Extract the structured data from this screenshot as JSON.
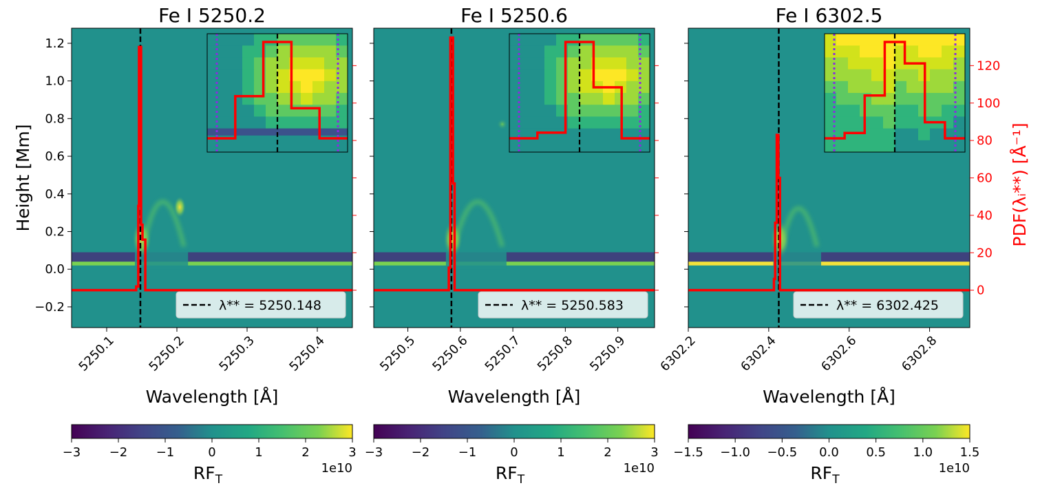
{
  "chart_data": [
    {
      "type": "heatmap",
      "title": "Fe I 5250.2",
      "xlabel": "Wavelength [Å]",
      "ylabel": "Height [Mm]",
      "xlim": [
        5250.05,
        5250.45
      ],
      "ylim": [
        -0.31,
        1.28
      ],
      "xticks": [
        5250.1,
        5250.2,
        5250.3,
        5250.4
      ],
      "xtick_labels": [
        "5250.1",
        "5250.2",
        "5250.3",
        "5250.4"
      ],
      "yticks": [
        -0.2,
        0.0,
        0.2,
        0.4,
        0.6,
        0.8,
        1.0,
        1.2
      ],
      "ytick_labels": [
        "−0.2",
        "0.0",
        "0.2",
        "0.4",
        "0.6",
        "0.8",
        "1.0",
        "1.2"
      ],
      "lambda_star": 5250.148,
      "legend_label": "λ** = 5250.148",
      "features": {
        "line_center": 5250.148,
        "arc_top": 0.45,
        "arc_right": 5250.21,
        "bright_spot_height": 0.33
      },
      "pdf_series": {
        "name": "PDF(λ**)",
        "steps": [
          [
            5250.05,
            0
          ],
          [
            5250.138,
            0
          ],
          [
            5250.142,
            2
          ],
          [
            5250.145,
            45
          ],
          [
            5250.146,
            130
          ],
          [
            5250.149,
            35
          ],
          [
            5250.151,
            27
          ],
          [
            5250.155,
            0
          ],
          [
            5250.45,
            0
          ]
        ]
      },
      "inset": {
        "pdf_steps": [
          0,
          35,
          80,
          25,
          0
        ],
        "dotted_lines": 2
      },
      "colorbar": {
        "label": "RF",
        "label_sub": "T",
        "range": [
          -3,
          3
        ],
        "ticks": [
          -3,
          -2,
          -1,
          0,
          1,
          2,
          3
        ],
        "tick_labels": [
          "−3",
          "−2",
          "−1",
          "0",
          "1",
          "2",
          "3"
        ],
        "scale": "1e10"
      }
    },
    {
      "type": "heatmap",
      "title": "Fe I 5250.6",
      "xlabel": "Wavelength [Å]",
      "xlim": [
        5250.435,
        5250.97
      ],
      "ylim": [
        -0.31,
        1.28
      ],
      "xticks": [
        5250.5,
        5250.6,
        5250.7,
        5250.8,
        5250.9
      ],
      "xtick_labels": [
        "5250.5",
        "5250.6",
        "5250.7",
        "5250.8",
        "5250.9"
      ],
      "lambda_star": 5250.583,
      "legend_label": "λ** = 5250.583",
      "features": {
        "line_center": 5250.583,
        "arc_top": 0.45,
        "arc_right": 5250.68
      },
      "pdf_series": {
        "name": "PDF(λ**)",
        "steps": [
          [
            5250.435,
            0
          ],
          [
            5250.576,
            0
          ],
          [
            5250.578,
            12
          ],
          [
            5250.581,
            135
          ],
          [
            5250.586,
            57
          ],
          [
            5250.589,
            0
          ],
          [
            5250.97,
            0
          ]
        ]
      },
      "inset": {
        "pdf_steps": [
          0,
          5,
          85,
          45,
          0
        ],
        "dotted_lines": 2
      },
      "colorbar": {
        "label": "RF",
        "label_sub": "T",
        "range": [
          -3,
          3
        ],
        "ticks": [
          -3,
          -2,
          -1,
          0,
          1,
          2,
          3
        ],
        "tick_labels": [
          "−3",
          "−2",
          "−1",
          "0",
          "1",
          "2",
          "3"
        ],
        "scale": "1e10"
      }
    },
    {
      "type": "heatmap",
      "title": "Fe I 6302.5",
      "xlabel": "Wavelength [Å]",
      "xlim": [
        6302.2,
        6302.9
      ],
      "ylim": [
        -0.31,
        1.28
      ],
      "xticks": [
        6302.2,
        6302.4,
        6302.6,
        6302.8
      ],
      "xtick_labels": [
        "6302.2",
        "6302.4",
        "6302.6",
        "6302.8"
      ],
      "lambda_star": 6302.425,
      "legend_label": "λ** = 6302.425",
      "y2label": "PDF(λᵢ**) [Å⁻¹]",
      "y2lim": [
        -20,
        140
      ],
      "y2ticks": [
        0,
        20,
        40,
        60,
        80,
        100,
        120
      ],
      "y2tick_labels": [
        "0",
        "20",
        "40",
        "60",
        "80",
        "100",
        "120"
      ],
      "features": {
        "line_center": 6302.425,
        "arc_top": 0.38,
        "arc_right": 6302.52
      },
      "pdf_series": {
        "name": "PDF(λ**)",
        "steps": [
          [
            6302.2,
            0
          ],
          [
            6302.41,
            0
          ],
          [
            6302.413,
            6
          ],
          [
            6302.416,
            36
          ],
          [
            6302.42,
            83
          ],
          [
            6302.424,
            60
          ],
          [
            6302.428,
            0
          ],
          [
            6302.9,
            0
          ]
        ]
      },
      "inset": {
        "pdf_steps": [
          0,
          5,
          40,
          90,
          70,
          15,
          0
        ],
        "dotted_lines": 2
      },
      "colorbar": {
        "label": "RF",
        "label_sub": "T",
        "range": [
          -1.5,
          1.5
        ],
        "ticks": [
          -1.5,
          -1.0,
          -0.5,
          0.0,
          0.5,
          1.0,
          1.5
        ],
        "tick_labels": [
          "−1.5",
          "−1.0",
          "−0.5",
          "0.0",
          "0.5",
          "1.0",
          "1.5"
        ],
        "scale": "1e10"
      }
    }
  ]
}
